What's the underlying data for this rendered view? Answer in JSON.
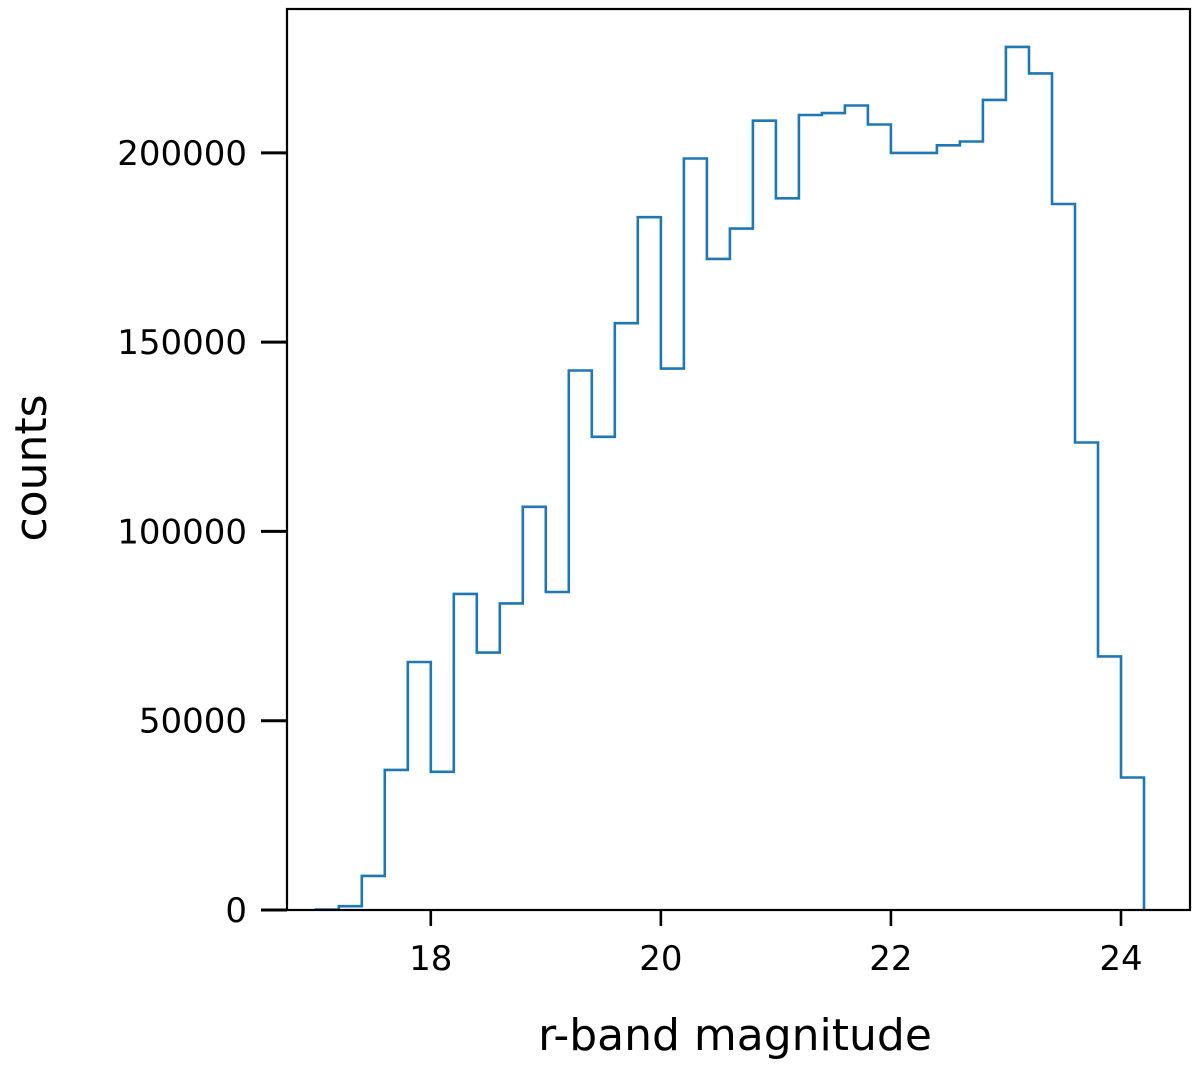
{
  "chart_data": {
    "type": "histogram",
    "style": "step",
    "color": "#1f77b4",
    "xlabel": "r-band magnitude",
    "ylabel": "counts",
    "xlim": [
      16.75,
      24.6
    ],
    "ylim": [
      0,
      238000
    ],
    "x_ticks": [
      18,
      20,
      22,
      24
    ],
    "x_tick_labels": [
      "18",
      "20",
      "22",
      "24"
    ],
    "y_ticks": [
      0,
      50000,
      100000,
      150000,
      200000
    ],
    "y_tick_labels": [
      "0",
      "50000",
      "100000",
      "150000",
      "200000"
    ],
    "grid": false,
    "bin_width": 0.2,
    "bin_edges": [
      17.0,
      17.2,
      17.4,
      17.6,
      17.8,
      18.0,
      18.2,
      18.4,
      18.6,
      18.8,
      19.0,
      19.2,
      19.4,
      19.6,
      19.8,
      20.0,
      20.2,
      20.4,
      20.6,
      20.8,
      21.0,
      21.2,
      21.4,
      21.6,
      21.8,
      22.0,
      22.2,
      22.4,
      22.6,
      22.8,
      23.0,
      23.2,
      23.4,
      23.6,
      23.8,
      24.0,
      24.2
    ],
    "counts": [
      100,
      1000,
      9000,
      37000,
      65500,
      36500,
      83500,
      68000,
      81000,
      106500,
      84000,
      142500,
      125000,
      155000,
      183000,
      143000,
      198500,
      172000,
      180000,
      208500,
      188000,
      210000,
      210500,
      212500,
      207500,
      200000,
      200000,
      202000,
      203000,
      214000,
      228000,
      221000,
      186500,
      123500,
      67000,
      35000
    ]
  }
}
